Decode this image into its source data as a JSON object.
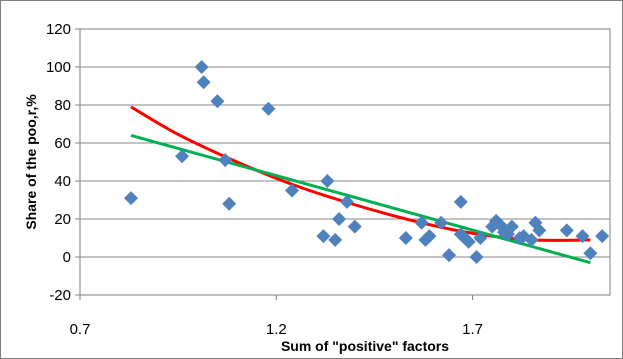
{
  "chart_data": {
    "type": "scatter",
    "title": "",
    "xlabel": "Sum of \"positive\"  factors",
    "ylabel": "Share of the poo,r,%",
    "xlim": [
      0.7,
      2.05
    ],
    "ylim": [
      -20,
      120
    ],
    "x_ticks": [
      "0.7",
      "1.2",
      "1.7"
    ],
    "x_tick_values": [
      0.7,
      1.2,
      1.7
    ],
    "y_ticks": [
      "-20",
      "0",
      "20",
      "40",
      "60",
      "80",
      "100",
      "120"
    ],
    "y_tick_values": [
      -20,
      0,
      20,
      40,
      60,
      80,
      100,
      120
    ],
    "grid": "horizontal",
    "legend": "none",
    "series": [
      {
        "marker": "diamond",
        "color": "#4f81bd",
        "x": [
          0.83,
          0.96,
          1.01,
          1.015,
          1.05,
          1.07,
          1.08,
          1.18,
          1.24,
          1.32,
          1.33,
          1.35,
          1.36,
          1.38,
          1.4,
          1.53,
          1.57,
          1.58,
          1.59,
          1.62,
          1.64,
          1.67,
          1.67,
          1.68,
          1.69,
          1.71,
          1.72,
          1.75,
          1.76,
          1.77,
          1.78,
          1.79,
          1.8,
          1.82,
          1.83,
          1.85,
          1.86,
          1.87,
          1.94,
          1.98,
          2.0,
          2.03
        ],
        "y": [
          31,
          53,
          100,
          92,
          82,
          51,
          28,
          78,
          35,
          11,
          40,
          9,
          20,
          29,
          16,
          10,
          18,
          9,
          11,
          18,
          1,
          29,
          12,
          10,
          8,
          0,
          10,
          16,
          19,
          17,
          13,
          12,
          16,
          10,
          11,
          9,
          18,
          14,
          14,
          11,
          2,
          11
        ]
      }
    ],
    "trendlines": [
      {
        "type": "polynomial",
        "color": "#ff0000",
        "x": [
          0.83,
          0.95,
          1.1,
          1.25,
          1.4,
          1.55,
          1.7,
          1.85,
          2.0
        ],
        "y": [
          79,
          64.5,
          50,
          37.5,
          27.5,
          19,
          12.5,
          9,
          9
        ]
      },
      {
        "type": "linear",
        "color": "#00b050",
        "x": [
          0.83,
          2.0
        ],
        "y": [
          64,
          -3
        ]
      }
    ]
  }
}
